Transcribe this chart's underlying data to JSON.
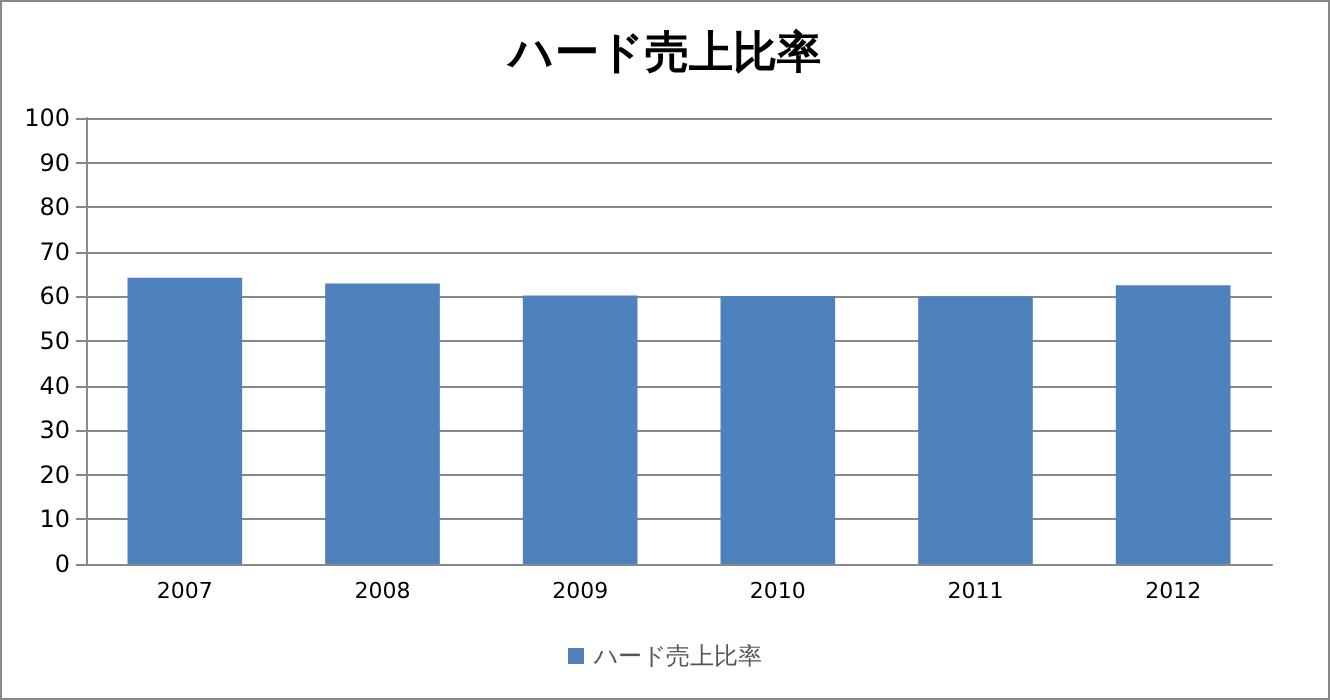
{
  "chart_data": {
    "type": "bar",
    "title": "ハード売上比率",
    "categories": [
      "2007",
      "2008",
      "2009",
      "2010",
      "2011",
      "2012"
    ],
    "series": [
      {
        "name": "ハード売上比率",
        "color": "#4f81bd",
        "values": [
          64.2,
          62.9,
          60.2,
          60.1,
          60.0,
          62.5
        ]
      }
    ],
    "ylim": [
      0,
      100
    ],
    "yticks": [
      0,
      10,
      20,
      30,
      40,
      50,
      60,
      70,
      80,
      90,
      100
    ],
    "grid": "y",
    "legend": "bottom"
  }
}
